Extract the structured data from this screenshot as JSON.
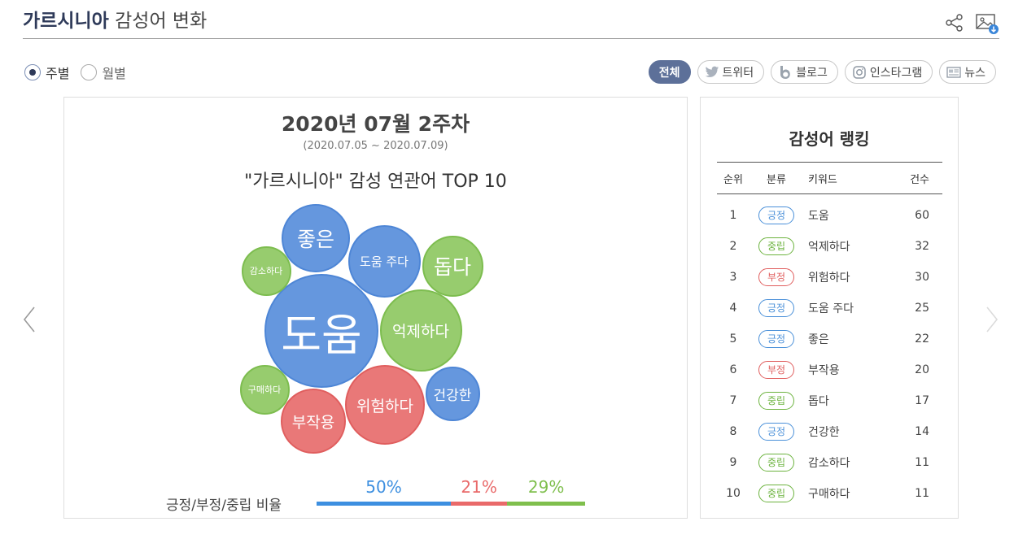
{
  "header": {
    "keyword": "가르시니아",
    "title_rest": " 감성어 변화"
  },
  "icons": {
    "share": "share-icon",
    "image_download": "image-download-icon"
  },
  "period": {
    "options": [
      {
        "label": "주별",
        "selected": true
      },
      {
        "label": "월별",
        "selected": false
      }
    ]
  },
  "filters": [
    {
      "label": "전체",
      "icon": "",
      "active": true
    },
    {
      "label": "트위터",
      "icon": "twitter-icon",
      "active": false
    },
    {
      "label": "블로그",
      "icon": "blog-icon",
      "active": false
    },
    {
      "label": "인스타그램",
      "icon": "instagram-icon",
      "active": false
    },
    {
      "label": "뉴스",
      "icon": "news-icon",
      "active": false
    }
  ],
  "main": {
    "week_title": "2020년 07월 2주차",
    "date_range": "(2020.07.05 ~ 2020.07.09)",
    "chart_title": "\"가르시니아\" 감성 연관어 TOP 10"
  },
  "chart_data": {
    "type": "bubble",
    "title": "\"가르시니아\" 감성 연관어 TOP 10",
    "points": [
      {
        "label": "도움",
        "value": 60,
        "sentiment": "pos"
      },
      {
        "label": "억제하다",
        "value": 32,
        "sentiment": "neu"
      },
      {
        "label": "위험하다",
        "value": 30,
        "sentiment": "neg"
      },
      {
        "label": "도움 주다",
        "value": 25,
        "sentiment": "pos"
      },
      {
        "label": "좋은",
        "value": 22,
        "sentiment": "pos"
      },
      {
        "label": "부작용",
        "value": 20,
        "sentiment": "neg"
      },
      {
        "label": "돕다",
        "value": 17,
        "sentiment": "neu"
      },
      {
        "label": "건강한",
        "value": 14,
        "sentiment": "pos"
      },
      {
        "label": "감소하다",
        "value": 11,
        "sentiment": "neu"
      },
      {
        "label": "구매하다",
        "value": 11,
        "sentiment": "neu"
      }
    ],
    "colors": {
      "pos": "#6597de",
      "neg": "#e97878",
      "neu": "#97cc6e"
    }
  },
  "ratio": {
    "label": "긍정/부정/중립 비율",
    "segments": [
      {
        "pct": "50%",
        "value": 50,
        "color": "#3d8fe0"
      },
      {
        "pct": "21%",
        "value": 21,
        "color": "#e96a6a"
      },
      {
        "pct": "29%",
        "value": 29,
        "color": "#7fbf4d"
      }
    ]
  },
  "ranking": {
    "title": "감성어 랭킹",
    "headers": {
      "rank": "순위",
      "category": "분류",
      "keyword": "키워드",
      "count": "건수"
    },
    "rows": [
      {
        "rank": "1",
        "category": "긍정",
        "type": "pos",
        "keyword": "도움",
        "count": "60"
      },
      {
        "rank": "2",
        "category": "중립",
        "type": "neu",
        "keyword": "억제하다",
        "count": "32"
      },
      {
        "rank": "3",
        "category": "부정",
        "type": "neg",
        "keyword": "위험하다",
        "count": "30"
      },
      {
        "rank": "4",
        "category": "긍정",
        "type": "pos",
        "keyword": "도움 주다",
        "count": "25"
      },
      {
        "rank": "5",
        "category": "긍정",
        "type": "pos",
        "keyword": "좋은",
        "count": "22"
      },
      {
        "rank": "6",
        "category": "부정",
        "type": "neg",
        "keyword": "부작용",
        "count": "20"
      },
      {
        "rank": "7",
        "category": "중립",
        "type": "neu",
        "keyword": "돕다",
        "count": "17"
      },
      {
        "rank": "8",
        "category": "긍정",
        "type": "pos",
        "keyword": "건강한",
        "count": "14"
      },
      {
        "rank": "9",
        "category": "중립",
        "type": "neu",
        "keyword": "감소하다",
        "count": "11"
      },
      {
        "rank": "10",
        "category": "중립",
        "type": "neu",
        "keyword": "구매하다",
        "count": "11"
      }
    ]
  }
}
